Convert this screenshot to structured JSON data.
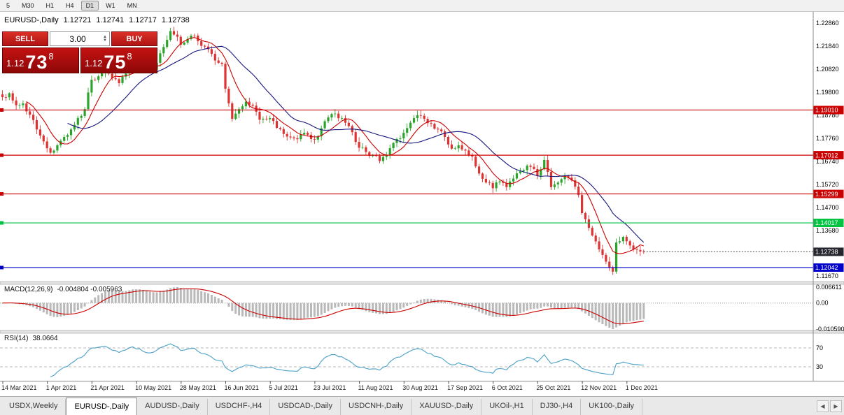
{
  "toolbar": {
    "timeframes": [
      {
        "label": "5",
        "active": false
      },
      {
        "label": "M30",
        "active": false
      },
      {
        "label": "H1",
        "active": false
      },
      {
        "label": "H4",
        "active": false
      },
      {
        "label": "D1",
        "active": true
      },
      {
        "label": "W1",
        "active": false
      },
      {
        "label": "MN",
        "active": false
      }
    ]
  },
  "chart_header": {
    "symbol_label": "EURUSD-,Daily",
    "open": "1.12721",
    "high": "1.12741",
    "low": "1.12717",
    "close": "1.12738"
  },
  "trade_panel": {
    "sell_label": "SELL",
    "buy_label": "BUY",
    "volume": "3.00",
    "spinner_up": "▲",
    "spinner_down": "▼",
    "bid": {
      "prefix": "1.12",
      "big": "73",
      "sup": "8"
    },
    "ask": {
      "prefix": "1.12",
      "big": "75",
      "sup": "8"
    }
  },
  "chart_data": {
    "type": "candlestick",
    "symbol": "EURUSD-",
    "timeframe": "Daily",
    "ohlc_current": {
      "open": 1.12721,
      "high": 1.12741,
      "low": 1.12717,
      "close": 1.12738
    },
    "num_candles": 188,
    "ylim": [
      1.114,
      1.2335
    ],
    "candle_up_color": "#2aa52a",
    "candle_down_color": "#dd3333",
    "price_anchors": [
      [
        0,
        1.1958
      ],
      [
        2,
        1.1975
      ],
      [
        4,
        1.1922
      ],
      [
        6,
        1.193
      ],
      [
        8,
        1.188
      ],
      [
        10,
        1.1815
      ],
      [
        12,
        1.1762
      ],
      [
        14,
        1.1712
      ],
      [
        16,
        1.1745
      ],
      [
        18,
        1.1782
      ],
      [
        20,
        1.1815
      ],
      [
        22,
        1.1866
      ],
      [
        24,
        1.1905
      ],
      [
        26,
        1.2035
      ],
      [
        28,
        1.205
      ],
      [
        30,
        1.208
      ],
      [
        32,
        1.2042
      ],
      [
        34,
        1.202
      ],
      [
        36,
        1.2062
      ],
      [
        38,
        1.2125
      ],
      [
        41,
        1.2085
      ],
      [
        43,
        1.207
      ],
      [
        45,
        1.211
      ],
      [
        47,
        1.218
      ],
      [
        49,
        1.225
      ],
      [
        51,
        1.2225
      ],
      [
        52,
        1.219
      ],
      [
        54,
        1.2215
      ],
      [
        56,
        1.223
      ],
      [
        58,
        1.2185
      ],
      [
        60,
        1.217
      ],
      [
        62,
        1.212
      ],
      [
        64,
        1.2105
      ],
      [
        65,
        1.1995
      ],
      [
        67,
        1.1862
      ],
      [
        69,
        1.1905
      ],
      [
        71,
        1.1938
      ],
      [
        73,
        1.192
      ],
      [
        75,
        1.1858
      ],
      [
        78,
        1.1865
      ],
      [
        80,
        1.1822
      ],
      [
        82,
        1.1795
      ],
      [
        84,
        1.178
      ],
      [
        86,
        1.1772
      ],
      [
        88,
        1.18
      ],
      [
        91,
        1.177
      ],
      [
        93,
        1.182
      ],
      [
        95,
        1.1868
      ],
      [
        97,
        1.1885
      ],
      [
        99,
        1.1865
      ],
      [
        101,
        1.183
      ],
      [
        103,
        1.176
      ],
      [
        106,
        1.1715
      ],
      [
        108,
        1.17
      ],
      [
        110,
        1.1675
      ],
      [
        112,
        1.17
      ],
      [
        114,
        1.1755
      ],
      [
        117,
        1.18
      ],
      [
        119,
        1.1845
      ],
      [
        121,
        1.1878
      ],
      [
        123,
        1.1862
      ],
      [
        125,
        1.184
      ],
      [
        127,
        1.1815
      ],
      [
        129,
        1.1782
      ],
      [
        131,
        1.173
      ],
      [
        133,
        1.1745
      ],
      [
        135,
        1.1722
      ],
      [
        137,
        1.1695
      ],
      [
        139,
        1.162
      ],
      [
        141,
        1.158
      ],
      [
        143,
        1.1555
      ],
      [
        145,
        1.1585
      ],
      [
        147,
        1.156
      ],
      [
        149,
        1.1598
      ],
      [
        151,
        1.163
      ],
      [
        153,
        1.1655
      ],
      [
        155,
        1.164
      ],
      [
        156,
        1.161
      ],
      [
        158,
        1.168
      ],
      [
        160,
        1.156
      ],
      [
        162,
        1.158
      ],
      [
        164,
        1.161
      ],
      [
        166,
        1.159
      ],
      [
        168,
        1.1525
      ],
      [
        169,
        1.1445
      ],
      [
        171,
        1.138
      ],
      [
        173,
        1.132
      ],
      [
        175,
        1.126
      ],
      [
        177,
        1.1205
      ],
      [
        178,
        1.1186
      ],
      [
        179,
        1.1315
      ],
      [
        181,
        1.134
      ],
      [
        183,
        1.1302
      ],
      [
        185,
        1.1282
      ],
      [
        187,
        1.12738
      ]
    ],
    "x_axis_labels": [
      "14 Mar 2021",
      "1 Apr 2021",
      "21 Apr 2021",
      "10 May 2021",
      "28 May 2021",
      "16 Jun 2021",
      "5 Jul 2021",
      "23 Jul 2021",
      "11 Aug 2021",
      "30 Aug 2021",
      "17 Sep 2021",
      "6 Oct 2021",
      "25 Oct 2021",
      "12 Nov 2021",
      "1 Dec 2021"
    ],
    "y_axis_labels": [
      "1.22860",
      "1.21840",
      "1.20820",
      "1.19800",
      "1.18780",
      "1.17760",
      "1.16740",
      "1.15720",
      "1.14700",
      "1.13680",
      "1.11670"
    ],
    "moving_averages": [
      {
        "period": 8,
        "color": "#cc0000"
      },
      {
        "period": 20,
        "color": "#15157e"
      }
    ],
    "horizontal_lines": [
      {
        "price": 1.1901,
        "label": "1.19010",
        "color": "#cc0000"
      },
      {
        "price": 1.17012,
        "label": "1.17012",
        "color": "#cc0000"
      },
      {
        "price": 1.15299,
        "label": "1.15299",
        "color": "#cc0000"
      },
      {
        "price": 1.14017,
        "label": "1.14017",
        "color": "#00c341"
      },
      {
        "price": 1.12042,
        "label": "1.12042",
        "color": "#0000cc"
      }
    ],
    "current_price": {
      "value": 1.12738,
      "label": "1.12738",
      "badge_color": "#26262e"
    },
    "indicators": {
      "macd": {
        "title": "MACD(12,26,9)",
        "values_text": "-0.004804 -0.005963",
        "fast": 12,
        "slow": 26,
        "signal": 9,
        "axis_labels": [
          "0.006611",
          "0.00",
          "-0.010590"
        ],
        "histogram_color": "#b9b9b9",
        "signal_color": "#cc0000"
      },
      "rsi": {
        "title": "RSI(14)",
        "value_text": "38.0664",
        "period": 14,
        "levels": [
          70,
          30
        ],
        "line_color": "#4aa0c8"
      }
    }
  },
  "tabs": {
    "items": [
      {
        "label": "USDX,Weekly",
        "active": false
      },
      {
        "label": "EURUSD-,Daily",
        "active": true
      },
      {
        "label": "AUDUSD-,Daily",
        "active": false
      },
      {
        "label": "USDCHF-,H4",
        "active": false
      },
      {
        "label": "USDCAD-,Daily",
        "active": false
      },
      {
        "label": "USDCNH-,Daily",
        "active": false
      },
      {
        "label": "XAUUSD-,Daily",
        "active": false
      },
      {
        "label": "UKOil-,H1",
        "active": false
      },
      {
        "label": "DJ30-,H4",
        "active": false
      },
      {
        "label": "UK100-,Daily",
        "active": false
      }
    ],
    "scroll_left": "◀",
    "scroll_right": "▶"
  }
}
